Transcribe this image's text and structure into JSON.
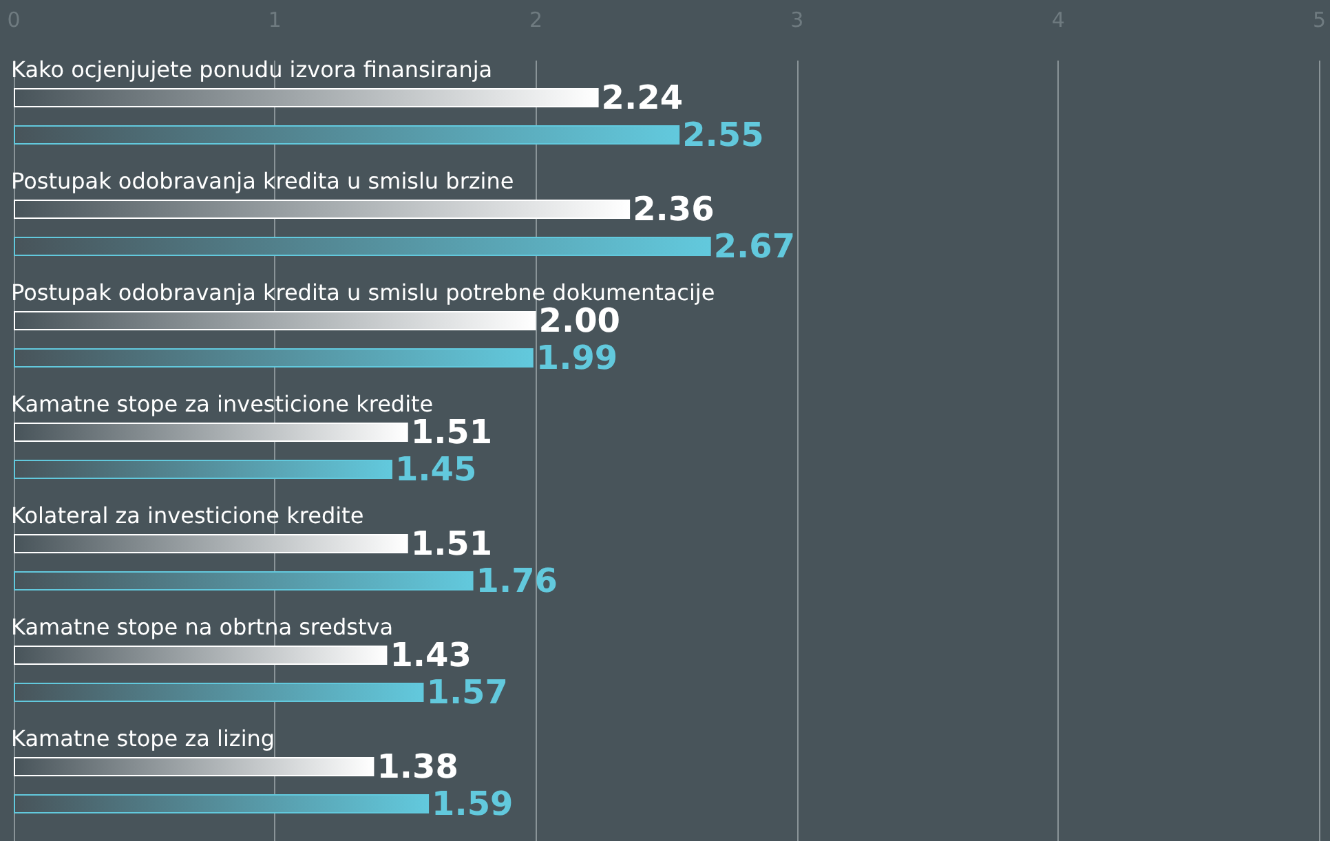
{
  "chart_data": {
    "type": "bar",
    "orientation": "horizontal",
    "categories": [
      "Kako ocjenjujete ponudu izvora finansiranja",
      "Postupak odobravanja kredita u smislu brzine",
      "Postupak odobravanja kredita u smislu potrebne dokumentacije",
      "Kamatne stope za investicione kredite",
      "Kolateral za investicione kredite",
      "Kamatne stope na obrtna sredstva",
      "Kamatne stope za lizing"
    ],
    "series": [
      {
        "color": "#ffffff",
        "values": [
          2.24,
          2.36,
          2.0,
          1.51,
          1.51,
          1.43,
          1.38
        ],
        "value_labels": [
          "2.24",
          "2.36",
          "2.00",
          "1.51",
          "1.51",
          "1.43",
          "1.38"
        ]
      },
      {
        "color": "#62c9dd",
        "values": [
          2.55,
          2.67,
          1.99,
          1.45,
          1.76,
          1.57,
          1.59
        ],
        "value_labels": [
          "2.55",
          "2.67",
          "1.99",
          "1.45",
          "1.76",
          "1.57",
          "1.59"
        ]
      }
    ],
    "xlim": [
      0,
      5
    ],
    "xticks": [
      0,
      1,
      2,
      3,
      4,
      5
    ],
    "grid": "x"
  }
}
